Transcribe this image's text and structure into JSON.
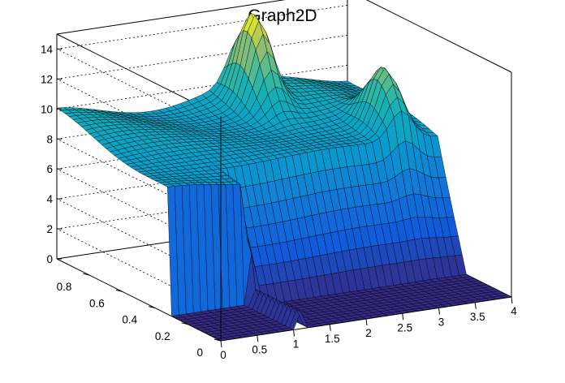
{
  "chart_data": {
    "type": "surface3d",
    "title": "Graph2D",
    "xlabel": "",
    "ylabel": "",
    "zlabel": "",
    "xlim": [
      0,
      4
    ],
    "ylim": [
      0,
      1
    ],
    "zlim": [
      0,
      15
    ],
    "x_ticks": [
      0,
      0.5,
      1,
      1.5,
      2,
      2.5,
      3,
      3.5,
      4
    ],
    "x_tick_labels": [
      "0",
      "0.5",
      "1",
      "1.5",
      "2",
      "2.5",
      "3",
      "3.5",
      "4"
    ],
    "y_ticks": [
      0,
      0.2,
      0.4,
      0.6,
      0.8
    ],
    "y_tick_labels": [
      "0",
      "0.2",
      "0.4",
      "0.6",
      "0.8"
    ],
    "z_ticks": [
      0,
      2,
      4,
      6,
      8,
      10,
      12,
      14
    ],
    "z_tick_labels": [
      "0",
      "2",
      "4",
      "6",
      "8",
      "10",
      "12",
      "14"
    ],
    "grid": true,
    "colormap": "viridis-like (blue to green to yellow)",
    "surface": {
      "x_range": [
        0,
        4
      ],
      "y_range": [
        0,
        1
      ],
      "cutout_region": {
        "x": [
          0,
          1
        ],
        "y": [
          0,
          0.3
        ],
        "z": 0
      },
      "baseline_z_near_y0": 7.5,
      "baseline_z_far_y1": 9.5,
      "near_edge_x0_y1_z": 7.5,
      "far_corner_x4_y1_z": 8,
      "low_edge_z": 0,
      "peaks": [
        {
          "x": 2.5,
          "y": 0.9,
          "z": 14.5
        },
        {
          "x": 3.5,
          "y": 0.55,
          "z": 13
        }
      ]
    }
  }
}
